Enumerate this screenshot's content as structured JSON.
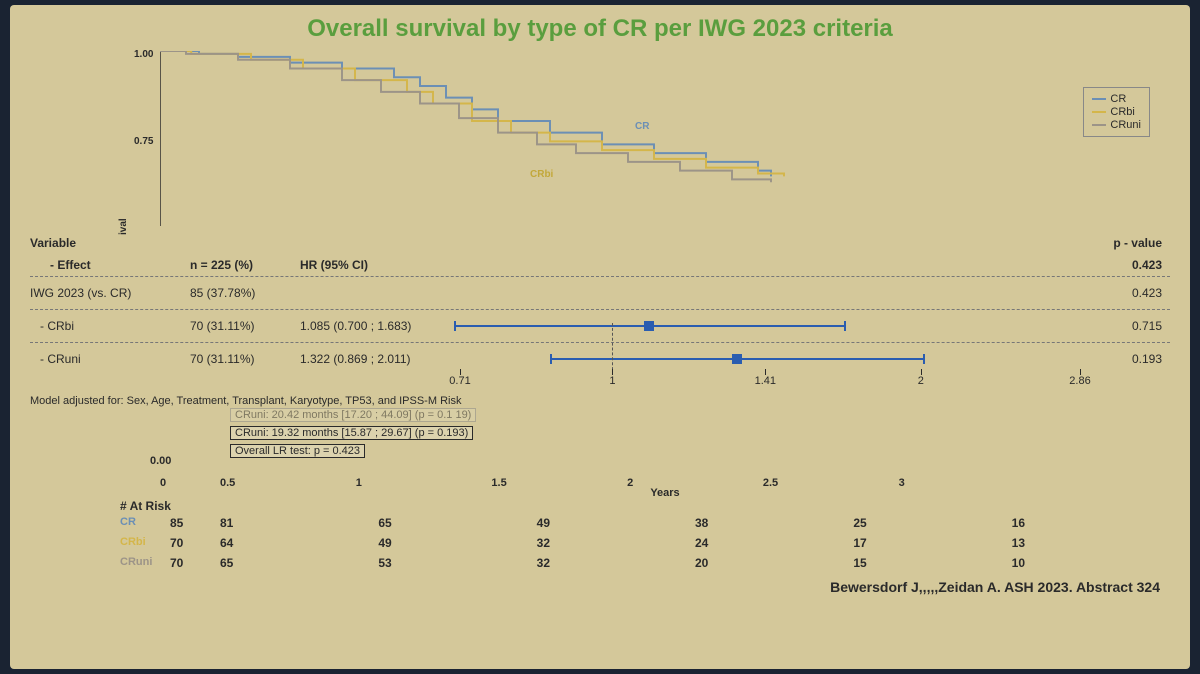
{
  "title": "Overall survival by type of CR per IWG 2023 criteria",
  "km": {
    "ylabel": "ival",
    "yticks": [
      1.0,
      0.75
    ],
    "ylim": [
      0.4,
      1.0
    ],
    "xlim_years": [
      0,
      3
    ],
    "colors": {
      "CR": "#6b8fb5",
      "CRbi": "#d4b64a",
      "CRuni": "#9c9488"
    },
    "series": {
      "CR": [
        [
          0,
          1.0
        ],
        [
          0.15,
          0.99
        ],
        [
          0.3,
          0.98
        ],
        [
          0.5,
          0.96
        ],
        [
          0.7,
          0.94
        ],
        [
          0.9,
          0.91
        ],
        [
          1.0,
          0.88
        ],
        [
          1.1,
          0.84
        ],
        [
          1.2,
          0.8
        ],
        [
          1.3,
          0.76
        ],
        [
          1.5,
          0.72
        ],
        [
          1.7,
          0.68
        ],
        [
          1.9,
          0.65
        ],
        [
          2.1,
          0.62
        ],
        [
          2.3,
          0.59
        ],
        [
          2.35,
          0.57
        ]
      ],
      "CRbi": [
        [
          0,
          1.0
        ],
        [
          0.12,
          0.99
        ],
        [
          0.35,
          0.97
        ],
        [
          0.55,
          0.94
        ],
        [
          0.75,
          0.9
        ],
        [
          0.95,
          0.86
        ],
        [
          1.05,
          0.82
        ],
        [
          1.2,
          0.76
        ],
        [
          1.35,
          0.72
        ],
        [
          1.5,
          0.69
        ],
        [
          1.7,
          0.66
        ],
        [
          1.9,
          0.63
        ],
        [
          2.1,
          0.6
        ],
        [
          2.3,
          0.58
        ],
        [
          2.4,
          0.57
        ]
      ],
      "CRuni": [
        [
          0,
          1.0
        ],
        [
          0.1,
          0.99
        ],
        [
          0.3,
          0.97
        ],
        [
          0.5,
          0.94
        ],
        [
          0.7,
          0.9
        ],
        [
          0.85,
          0.86
        ],
        [
          1.0,
          0.82
        ],
        [
          1.15,
          0.77
        ],
        [
          1.3,
          0.72
        ],
        [
          1.45,
          0.68
        ],
        [
          1.6,
          0.65
        ],
        [
          1.8,
          0.62
        ],
        [
          2.0,
          0.59
        ],
        [
          2.2,
          0.56
        ],
        [
          2.35,
          0.55
        ]
      ]
    },
    "curve_labels": {
      "CR": "CR",
      "CRbi": "CRbi"
    },
    "legend_items": [
      "CR",
      "CRbi",
      "CRuni"
    ]
  },
  "forest": {
    "headers": {
      "variable": "Variable",
      "effect": "- Effect",
      "n": "n = 225 (%)",
      "hr": "HR (95% CI)",
      "pval": "p - value"
    },
    "xlim": [
      0.71,
      2.86
    ],
    "xscale": "log",
    "ticks": [
      0.71,
      1.0,
      1.41,
      2.0,
      2.86
    ],
    "ref": 1.0,
    "rows": [
      {
        "label": "IWG 2023 (vs. CR)",
        "n": "85 (37.78%)",
        "hr": "",
        "pval": "0.423",
        "ci": null
      },
      {
        "label": "   - CRbi",
        "n": "70 (31.11%)",
        "hr": "1.085 (0.700 ; 1.683)",
        "pval": "0.715",
        "ci": [
          0.7,
          1.085,
          1.683
        ]
      },
      {
        "label": "   - CRuni",
        "n": "70 (31.11%)",
        "hr": "1.322 (0.869 ; 2.011)",
        "pval": "0.193",
        "ci": [
          0.869,
          1.322,
          2.011
        ]
      }
    ],
    "global_p": "0.423"
  },
  "notes": {
    "adjusted": "Model adjusted for: Sex, Age, Treatment, Transplant, Karyotype, TP53, and IPSS-M Risk",
    "faded": "CRuni:  20.42 months [17.20 ; 44.09] (p = 0.1 19)",
    "cruni": "CRuni:  19.32 months [15.87 ; 29.67] (p = 0.193)",
    "lr": "Overall LR test: p = 0.423"
  },
  "risk": {
    "zero_y": "0.00",
    "zero_x": "0",
    "header": "# At Risk",
    "xticks": [
      "0.5",
      "1",
      "1.5",
      "2",
      "2.5",
      "3"
    ],
    "xlabel": "Years",
    "rows": [
      {
        "label": "CR",
        "color": "#6b8fb5",
        "values": [
          85,
          81,
          65,
          49,
          38,
          25,
          16
        ]
      },
      {
        "label": "CRbi",
        "color": "#d4b64a",
        "values": [
          70,
          64,
          49,
          32,
          24,
          17,
          13
        ]
      },
      {
        "label": "CRuni",
        "color": "#9c9488",
        "values": [
          70,
          65,
          53,
          32,
          20,
          15,
          10
        ]
      }
    ]
  },
  "citation": "Bewersdorf J,,,,,Zeidan A. ASH 2023. Abstract 324"
}
